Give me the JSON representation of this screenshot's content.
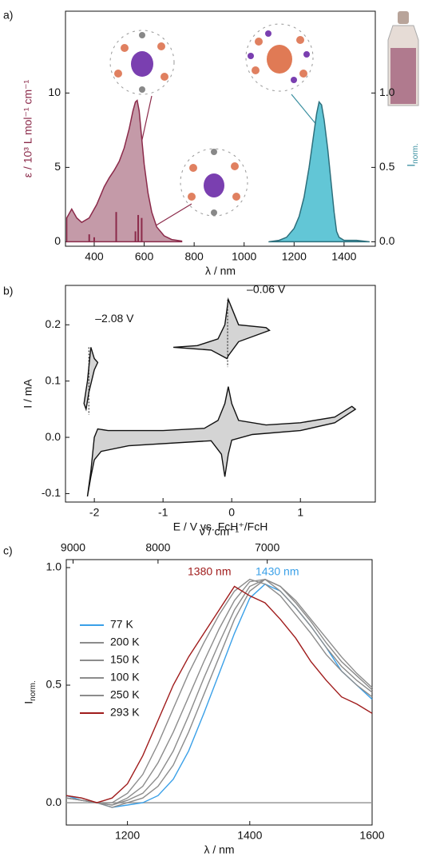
{
  "chart_data": [
    {
      "type": "spectrum",
      "panel_label": "a)",
      "xlabel": "λ / nm",
      "ylabel": "ε / 10³ L mol⁻¹ cm⁻¹",
      "y2label": "I",
      "y2label_subscript": "norm.",
      "xlim": [
        285,
        1525
      ],
      "xticks": [
        400,
        600,
        800,
        1000,
        1200,
        1400
      ],
      "ylim": [
        -0.3,
        15.5
      ],
      "yticks": [
        0,
        5,
        10
      ],
      "y2lim": [
        -0.03,
        1.55
      ],
      "y2ticks": [
        {
          "value": 0,
          "label": "0.0"
        },
        {
          "value": 0.5,
          "label": "0.5"
        },
        {
          "value": 1,
          "label": "1.0"
        }
      ],
      "ylabel_color": "#8b2a4a",
      "y2label_color": "#3a8fa0",
      "series": [
        {
          "style": "area",
          "color": "#8b2a4a",
          "fill": "#c49aa8",
          "x": [
            290,
            310,
            330,
            350,
            380,
            410,
            440,
            460,
            480,
            500,
            520,
            540,
            555,
            565,
            572,
            580,
            590,
            600,
            615,
            630,
            650,
            680,
            710,
            750
          ],
          "values": [
            1.6,
            2.2,
            1.6,
            1.3,
            1.6,
            2.5,
            3.7,
            4.3,
            4.8,
            5.4,
            6.3,
            7.6,
            8.8,
            9.4,
            9.5,
            8.8,
            7.0,
            5.2,
            3.3,
            2.0,
            1.0,
            0.4,
            0.15,
            0.05
          ]
        },
        {
          "style": "sticks",
          "color": "#8b2a4a",
          "x": [
            380,
            400,
            488,
            565,
            576,
            590
          ],
          "values": [
            0.5,
            0.3,
            2.0,
            0.7,
            1.8,
            1.6
          ]
        },
        {
          "style": "area",
          "axis": "y2",
          "color": "#2d6f7c",
          "fill": "#62c6d6",
          "x": [
            1100,
            1140,
            1170,
            1200,
            1220,
            1240,
            1260,
            1275,
            1290,
            1300,
            1310,
            1320,
            1335,
            1350,
            1360,
            1370,
            1380,
            1400,
            1450,
            1500
          ],
          "values": [
            0.0,
            0.01,
            0.03,
            0.09,
            0.17,
            0.3,
            0.5,
            0.68,
            0.86,
            0.94,
            0.92,
            0.82,
            0.62,
            0.37,
            0.2,
            0.07,
            0.03,
            0.01,
            0.01,
            0.0
          ]
        }
      ]
    },
    {
      "type": "cv",
      "panel_label": "b)",
      "xlabel": "E / V vs. FcH⁺/FcH",
      "ylabel": "I / mA",
      "xlim": [
        -2.42,
        2.09
      ],
      "xticks": [
        -2,
        -1,
        0,
        1
      ],
      "ylim": [
        -0.115,
        0.27
      ],
      "yticks": [
        -0.1,
        {
          "value": 0,
          "label": "0.0"
        },
        0.1,
        0.2
      ],
      "annotations": [
        {
          "x": -2.08,
          "label": "–2.08 V"
        },
        {
          "x": -0.06,
          "label": "–0.06 V"
        }
      ],
      "series": [
        {
          "color": "#111111",
          "fill": "#d4d4d4",
          "x": [
            -2.1,
            -2.05,
            -2.0,
            -1.95,
            -1.8,
            -1.0,
            -0.4,
            -0.2,
            -0.1,
            -0.05,
            0.0,
            0.1,
            0.5,
            1.0,
            1.5,
            1.75,
            1.8,
            1.5,
            1.0,
            0.3,
            0.0,
            -0.05,
            -0.1,
            -0.15,
            -0.3,
            -1.5,
            -1.9,
            -2.0,
            -2.05,
            -2.1
          ],
          "values": [
            -0.105,
            -0.06,
            0.0,
            0.015,
            0.012,
            0.012,
            0.016,
            0.03,
            0.06,
            0.09,
            0.06,
            0.03,
            0.022,
            0.026,
            0.036,
            0.055,
            0.05,
            0.026,
            0.012,
            0.005,
            -0.005,
            -0.03,
            -0.07,
            -0.03,
            -0.006,
            -0.015,
            -0.025,
            -0.04,
            -0.07,
            -0.105
          ]
        },
        {
          "color": "#111111",
          "fill": "#d4d4d4",
          "x": [
            -0.85,
            -0.5,
            -0.2,
            -0.1,
            -0.05,
            0.0,
            0.1,
            0.5,
            0.55,
            0.1,
            -0.05,
            -0.07,
            -0.3,
            -0.85
          ],
          "values": [
            0.16,
            0.163,
            0.175,
            0.2,
            0.245,
            0.23,
            0.2,
            0.195,
            0.19,
            0.17,
            0.145,
            0.14,
            0.155,
            0.16
          ]
        },
        {
          "color": "#111111",
          "fill": "#d4d4d4",
          "x": [
            -2.15,
            -2.1,
            -2.05,
            -2.0,
            -1.95,
            -2.0,
            -2.08,
            -2.12,
            -2.15
          ],
          "values": [
            0.06,
            0.1,
            0.16,
            0.14,
            0.133,
            0.12,
            0.08,
            0.05,
            0.06
          ]
        }
      ]
    },
    {
      "type": "line",
      "panel_label": "c)",
      "xlabel": "λ / nm",
      "ylabel": "I",
      "ylabel_subscript": "norm.",
      "x2label": "ν̃ / cm⁻¹",
      "xlim": [
        1100,
        1600
      ],
      "xticks": [
        1200,
        1400,
        1600
      ],
      "x2ticks": [
        9000,
        8000,
        7000
      ],
      "ylim": [
        -0.095,
        1.034
      ],
      "yticks": [
        {
          "value": 0,
          "label": "0.0"
        },
        0.5,
        {
          "value": 1,
          "label": "1.0"
        }
      ],
      "zero_line": true,
      "annotations": [
        {
          "label": "1380 nm",
          "color": "#a01c1c"
        },
        {
          "label": "1430 nm",
          "color": "#3aa0e8"
        }
      ],
      "x": [
        1100,
        1125,
        1150,
        1175,
        1200,
        1225,
        1250,
        1275,
        1300,
        1325,
        1350,
        1375,
        1400,
        1425,
        1450,
        1475,
        1500,
        1525,
        1550,
        1575,
        1600
      ],
      "series": [
        {
          "name": "77 K",
          "color": "#3aa0e8",
          "values": [
            0.03,
            0.01,
            0,
            -0.02,
            -0.01,
            0,
            0.03,
            0.1,
            0.22,
            0.38,
            0.55,
            0.72,
            0.87,
            0.93,
            0.9,
            0.83,
            0.75,
            0.66,
            0.56,
            0.5,
            0.44
          ]
        },
        {
          "name": "200 K",
          "color": "#8c8c8c",
          "values": [
            0.02,
            0.01,
            0,
            -0.02,
            0,
            0.02,
            0.07,
            0.16,
            0.3,
            0.46,
            0.62,
            0.78,
            0.9,
            0.95,
            0.92,
            0.86,
            0.78,
            0.7,
            0.62,
            0.55,
            0.49
          ]
        },
        {
          "name": "150 K",
          "color": "#8c8c8c",
          "values": [
            0.02,
            0.01,
            0,
            -0.01,
            0.01,
            0.04,
            0.11,
            0.22,
            0.37,
            0.53,
            0.68,
            0.82,
            0.92,
            0.95,
            0.92,
            0.85,
            0.77,
            0.68,
            0.6,
            0.54,
            0.48
          ]
        },
        {
          "name": "100 K",
          "color": "#8c8c8c",
          "values": [
            0.02,
            0.01,
            0,
            -0.01,
            0.02,
            0.07,
            0.17,
            0.3,
            0.45,
            0.6,
            0.74,
            0.86,
            0.94,
            0.95,
            0.9,
            0.83,
            0.75,
            0.66,
            0.58,
            0.52,
            0.47
          ]
        },
        {
          "name": "250 K",
          "color": "#8c8c8c",
          "values": [
            0.03,
            0.02,
            0,
            0,
            0.04,
            0.12,
            0.25,
            0.4,
            0.55,
            0.68,
            0.8,
            0.9,
            0.95,
            0.93,
            0.88,
            0.8,
            0.72,
            0.63,
            0.56,
            0.5,
            0.45
          ]
        },
        {
          "name": "293 K",
          "color": "#a01c1c",
          "values": [
            0.03,
            0.02,
            0,
            0.02,
            0.08,
            0.2,
            0.35,
            0.5,
            0.62,
            0.72,
            0.82,
            0.92,
            0.88,
            0.85,
            0.78,
            0.7,
            0.6,
            0.52,
            0.45,
            0.42,
            0.38
          ]
        }
      ]
    }
  ]
}
